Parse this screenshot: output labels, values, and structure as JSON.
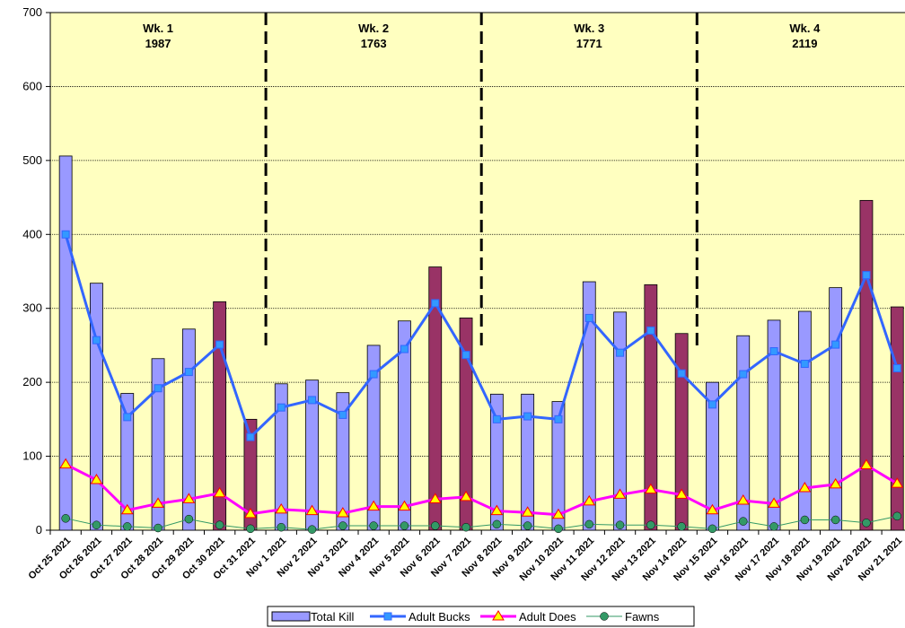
{
  "chart_data": {
    "type": "bar-line",
    "categories": [
      "Oct 25 2021",
      "Oct 26 2021",
      "Oct 27 2021",
      "Oct 28 2021",
      "Oct 29 2021",
      "Oct 30 2021",
      "Oct 31 2021",
      "Nov 1 2021",
      "Nov 2 2021",
      "Nov 3 2021",
      "Nov 4 2021",
      "Nov 5 2021",
      "Nov 6 2021",
      "Nov 7 2021",
      "Nov 8 2021",
      "Nov 9 2021",
      "Nov 10 2021",
      "Nov 11 2021",
      "Nov 12 2021",
      "Nov 13 2021",
      "Nov 14 2021",
      "Nov 15 2021",
      "Nov 16 2021",
      "Nov 17 2021",
      "Nov 18 2021",
      "Nov 19 2021",
      "Nov 20 2021",
      "Nov 21 2021"
    ],
    "series": [
      {
        "name": "Total Kill",
        "kind": "bar",
        "color": "#9999ff",
        "colors": [
          "#9999ff",
          "#9999ff",
          "#9999ff",
          "#9999ff",
          "#9999ff",
          "#993366",
          "#993366",
          "#9999ff",
          "#9999ff",
          "#9999ff",
          "#9999ff",
          "#9999ff",
          "#993366",
          "#993366",
          "#9999ff",
          "#9999ff",
          "#9999ff",
          "#9999ff",
          "#9999ff",
          "#993366",
          "#993366",
          "#9999ff",
          "#9999ff",
          "#9999ff",
          "#9999ff",
          "#9999ff",
          "#993366",
          "#993366"
        ],
        "values": [
          506,
          334,
          185,
          232,
          272,
          309,
          150,
          198,
          203,
          186,
          250,
          283,
          356,
          287,
          184,
          184,
          174,
          336,
          295,
          332,
          266,
          200,
          263,
          284,
          296,
          328,
          446,
          302
        ]
      },
      {
        "name": "Adult Bucks",
        "kind": "line",
        "marker": "square",
        "color": "#3366ff",
        "marker_color": "#3399ff",
        "values": [
          400,
          257,
          153,
          192,
          214,
          251,
          126,
          166,
          176,
          156,
          211,
          245,
          307,
          237,
          150,
          154,
          150,
          287,
          240,
          270,
          212,
          170,
          211,
          242,
          225,
          251,
          345,
          219
        ]
      },
      {
        "name": "Adult Does",
        "kind": "line",
        "marker": "triangle",
        "color": "#ff00ff",
        "marker_color": "#ffff00",
        "values": [
          89,
          68,
          27,
          36,
          42,
          50,
          22,
          28,
          26,
          23,
          32,
          32,
          42,
          45,
          26,
          24,
          21,
          39,
          48,
          55,
          48,
          27,
          40,
          36,
          57,
          62,
          88,
          63
        ]
      },
      {
        "name": "Fawns",
        "kind": "line",
        "marker": "circle",
        "color": "#339966",
        "marker_color": "#339966",
        "values": [
          16,
          7,
          5,
          3,
          15,
          7,
          2,
          4,
          1,
          6,
          6,
          6,
          6,
          4,
          8,
          6,
          2,
          8,
          7,
          7,
          5,
          2,
          12,
          5,
          14,
          14,
          10,
          19
        ]
      }
    ],
    "weeks": [
      {
        "label": "Wk. 1",
        "total": 1987
      },
      {
        "label": "Wk. 2",
        "total": 1763
      },
      {
        "label": "Wk. 3",
        "total": 1771
      },
      {
        "label": "Wk. 4",
        "total": 2119
      }
    ],
    "ylim": [
      0,
      700
    ],
    "yticks": [
      0,
      100,
      200,
      300,
      400,
      500,
      600,
      700
    ],
    "grid": true
  }
}
